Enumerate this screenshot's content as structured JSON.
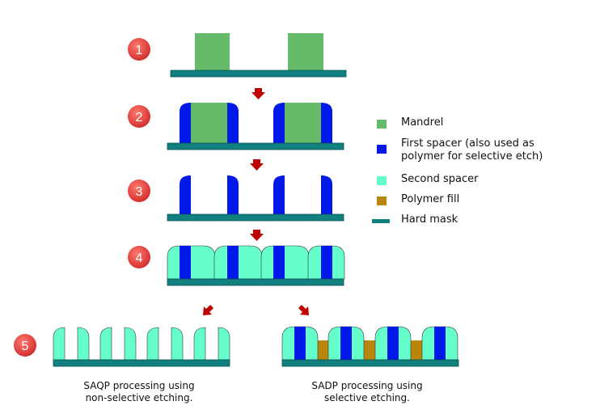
{
  "steps": [
    "1",
    "2",
    "3",
    "4",
    "5"
  ],
  "legend": [
    {
      "id": "mandrel",
      "lines": [
        "Mandrel"
      ],
      "color": "#66bb6a",
      "kind": "box"
    },
    {
      "id": "first-spacer",
      "lines": [
        "First spacer (also used as",
        "polymer for selective etch)"
      ],
      "color": "#0019e6",
      "kind": "box"
    },
    {
      "id": "second-spacer",
      "lines": [
        "Second spacer"
      ],
      "color": "#66ffcc",
      "kind": "box"
    },
    {
      "id": "polymer-fill",
      "lines": [
        "Polymer fill"
      ],
      "color": "#b8860b",
      "kind": "box"
    },
    {
      "id": "hard-mask",
      "lines": [
        "Hard mask"
      ],
      "color": "#108080",
      "kind": "line"
    }
  ],
  "captions": {
    "saqp": [
      "SAQP processing using",
      "non-selective etching."
    ],
    "sadp": [
      "SADP processing using",
      "selective etching."
    ]
  },
  "colors": {
    "mandrel": "#66bb6a",
    "first_spacer": "#0019e6",
    "second_spacer": "#66ffcc",
    "polymer": "#b8860b",
    "hard_mask": "#108080",
    "step_badge": "#e53935",
    "arrow": "#c00000"
  }
}
